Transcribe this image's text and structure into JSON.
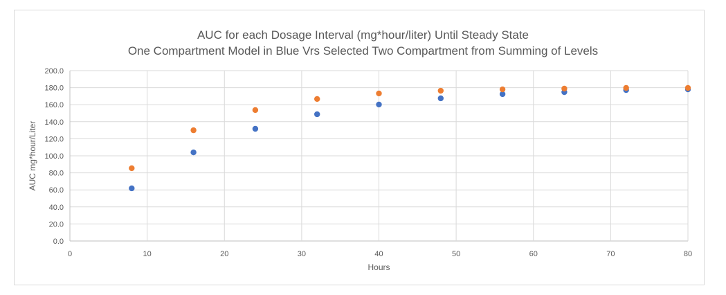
{
  "chart": {
    "title_line1": "AUC for each Dosage Interval (mg*hour/liter) Until Steady State",
    "title_line2": "One Compartment Model in Blue Vrs Selected Two Compartment from Summing of Levels",
    "xlabel": "Hours",
    "ylabel": "AUC mg*hour/Liter",
    "yticks": [
      "0.0",
      "20.0",
      "40.0",
      "60.0",
      "80.0",
      "100.0",
      "120.0",
      "140.0",
      "160.0",
      "180.0",
      "200.0"
    ],
    "xticks": [
      "0",
      "10",
      "20",
      "30",
      "40",
      "50",
      "60",
      "70",
      "80"
    ]
  },
  "chart_data": {
    "type": "scatter",
    "title": "AUC for each Dosage Interval (mg*hour/liter) Until Steady State / One Compartment Model in Blue Vrs Selected Two Compartment from Summing of Levels",
    "xlabel": "Hours",
    "ylabel": "AUC mg*hour/Liter",
    "xlim": [
      0,
      80
    ],
    "ylim": [
      0,
      200
    ],
    "grid": true,
    "legend": "none",
    "x": [
      8,
      16,
      24,
      32,
      40,
      48,
      56,
      64,
      72,
      80
    ],
    "series": [
      {
        "name": "One Compartment Model",
        "color": "#4472c4",
        "values": [
          61.8,
          104.0,
          131.7,
          148.8,
          160.2,
          167.5,
          172.4,
          174.8,
          177.2,
          178.0
        ]
      },
      {
        "name": "Selected Two Compartment (Summing of Levels)",
        "color": "#ed7d31",
        "values": [
          85.4,
          130.0,
          153.7,
          166.7,
          173.2,
          176.4,
          178.0,
          178.9,
          179.7,
          179.7
        ]
      }
    ]
  }
}
